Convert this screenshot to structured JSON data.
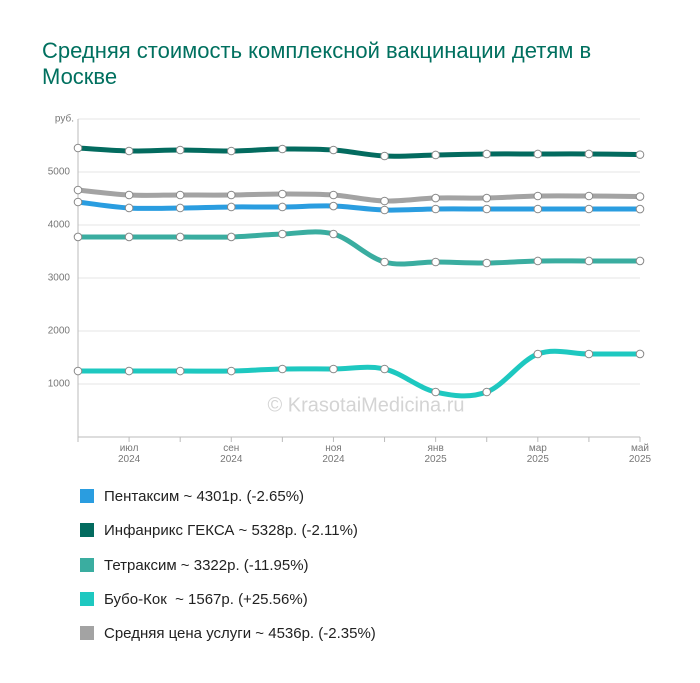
{
  "chart_data": {
    "type": "line",
    "title": "Средняя стоимость комплексной вакцинации детям в Москве",
    "y_label": "руб.",
    "watermark": "© KrasotaiMedicina.ru",
    "categories": [
      null,
      "июл 2024",
      null,
      "сен 2024",
      null,
      "ноя 2024",
      null,
      "янв 2025",
      null,
      "мар 2025",
      null,
      "май 2025"
    ],
    "ylim": [
      0,
      6000
    ],
    "yticks": [
      1000,
      2000,
      3000,
      4000,
      5000
    ],
    "grid": true,
    "series": [
      {
        "name": "Пентаксим ~ 4301р. (-2.65%)",
        "color": "#2a9de0",
        "values": [
          4434,
          4321,
          4321,
          4340,
          4340,
          4358,
          4283,
          4302,
          4302,
          4302,
          4302,
          4301
        ]
      },
      {
        "name": "Инфанрикс ГЕКСА ~ 5328р. (-2.11%)",
        "color": "#036b5f",
        "values": [
          5453,
          5396,
          5415,
          5396,
          5434,
          5415,
          5302,
          5321,
          5340,
          5340,
          5340,
          5328
        ]
      },
      {
        "name": "Тетраксим ~ 3322р. (-11.95%)",
        "color": "#3aada0",
        "values": [
          3774,
          3774,
          3774,
          3774,
          3830,
          3830,
          3302,
          3302,
          3283,
          3321,
          3321,
          3322
        ]
      },
      {
        "name": "Бубо-Кок  ~ 1567р. (+25.56%)",
        "color": "#1ec8c0",
        "values": [
          1245,
          1245,
          1245,
          1245,
          1283,
          1283,
          1283,
          849,
          849,
          1566,
          1566,
          1567
        ]
      },
      {
        "name": "Средняя цена услуги ~ 4536р. (-2.35%)",
        "color": "#a3a3a3",
        "values": [
          4660,
          4566,
          4566,
          4566,
          4585,
          4566,
          4453,
          4509,
          4509,
          4547,
          4547,
          4536
        ]
      }
    ]
  }
}
